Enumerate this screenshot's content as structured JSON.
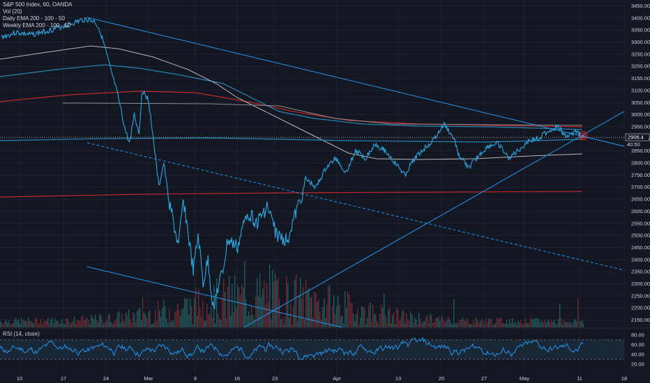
{
  "legend": {
    "symbol": "S&P 500 Index, 60, OANDA",
    "volume": "Vol (20)",
    "daily_ema": "Daily EMA 200 - 100 - 50",
    "weekly_ema": "Weekly EMA 200 - 100 - 50"
  },
  "rsi_label": "RSI (14, close)",
  "price_tag": "2906.4",
  "time_tag": "40:50",
  "colors": {
    "background": "#131722",
    "price_line": "#2ba7e0",
    "ema_red": "#c2282d",
    "ema_blue": "#2785b5",
    "ema_white": "#b8b8b8",
    "trendline": "#2196f3",
    "volume_red": "#6b2b34",
    "volume_teal": "#245a5c",
    "rsi_line": "#2196f3"
  },
  "chart_data": {
    "type": "line",
    "title": "S&P 500 Index, 60, OANDA",
    "xlabel": "",
    "ylabel": "",
    "x_ticks": [
      "10",
      "17",
      "24",
      "Mar",
      "9",
      "16",
      "23",
      "Apr",
      "13",
      "20",
      "27",
      "May",
      "11",
      "18"
    ],
    "y_ticks": [
      3450,
      3400,
      3350,
      3300,
      3250,
      3200,
      3150,
      3100,
      3050,
      3000,
      2950,
      2900,
      2850,
      2800,
      2750,
      2700,
      2650,
      2600,
      2550,
      2500,
      2450,
      2400,
      2350,
      2300,
      2250,
      2200,
      2150
    ],
    "ylim": [
      2120,
      3460
    ],
    "grid": true,
    "series": [
      {
        "name": "S&P 500 Index, 60, OANDA",
        "x": [
          0,
          3,
          6,
          10,
          14,
          17,
          19,
          20,
          21,
          22,
          23,
          24,
          25,
          26,
          27,
          28,
          28.5,
          29,
          30,
          31,
          32,
          33,
          34,
          35,
          36,
          37,
          38,
          39,
          40,
          41,
          42,
          43,
          44,
          45,
          46,
          48,
          50,
          52,
          54,
          56,
          58,
          60,
          62,
          64,
          66,
          68,
          70,
          72,
          74,
          76,
          78,
          80,
          82,
          84,
          86,
          88,
          90,
          92,
          93,
          95,
          97,
          99,
          101,
          103,
          105,
          107,
          109,
          111,
          113,
          115,
          117,
          118.5
        ],
        "values": [
          3320,
          3340,
          3330,
          3350,
          3375,
          3395,
          3385,
          3350,
          3280,
          3200,
          3130,
          3050,
          2950,
          2880,
          3000,
          2920,
          3080,
          3100,
          3050,
          2880,
          2700,
          2800,
          2650,
          2550,
          2450,
          2650,
          2500,
          2350,
          2500,
          2300,
          2400,
          2200,
          2280,
          2350,
          2480,
          2450,
          2600,
          2550,
          2620,
          2500,
          2480,
          2600,
          2730,
          2700,
          2780,
          2820,
          2760,
          2850,
          2820,
          2880,
          2850,
          2800,
          2750,
          2820,
          2860,
          2900,
          2960,
          2900,
          2830,
          2780,
          2830,
          2870,
          2880,
          2820,
          2850,
          2890,
          2900,
          2930,
          2950,
          2910,
          2930,
          2906.4
        ]
      }
    ],
    "ema_levels": {
      "daily_ema_200": 2665,
      "weekly_ema_50": 2900
    },
    "rsi": {
      "name": "RSI (14, close)",
      "ylim": [
        10,
        90
      ],
      "y_ticks": [
        80.0,
        60.0,
        40.0,
        20.0
      ],
      "bands": [
        70,
        30
      ]
    }
  }
}
